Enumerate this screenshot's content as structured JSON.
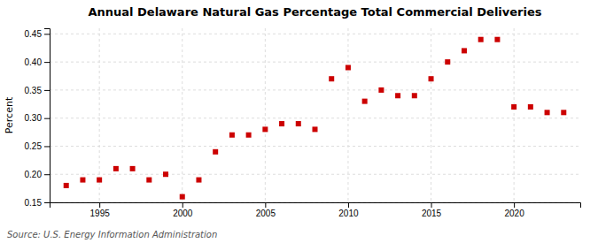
{
  "chart_data": {
    "type": "scatter",
    "title": "Annual Delaware Natural Gas Percentage Total Commercial Deliveries",
    "y_label": "Percent",
    "annotations": [
      "Source: U.S. Energy Information Administration"
    ],
    "x": [
      1993,
      1994,
      1995,
      1996,
      1997,
      1998,
      1999,
      2000,
      2001,
      2002,
      2003,
      2004,
      2005,
      2006,
      2007,
      2008,
      2009,
      2010,
      2011,
      2012,
      2013,
      2014,
      2015,
      2016,
      2017,
      2018,
      2019,
      2020,
      2021,
      2022,
      2023
    ],
    "values": [
      0.18,
      0.19,
      0.19,
      0.21,
      0.21,
      0.19,
      0.2,
      0.16,
      0.19,
      0.24,
      0.27,
      0.27,
      0.28,
      0.29,
      0.29,
      0.28,
      0.37,
      0.39,
      0.33,
      0.35,
      0.34,
      0.34,
      0.37,
      0.4,
      0.42,
      0.44,
      0.44,
      0.32,
      0.32,
      0.31,
      0.31
    ],
    "color": "#cc0000",
    "marker": "square",
    "xlim": [
      1992,
      2024
    ],
    "xticks": [
      1995,
      2000,
      2005,
      2010,
      2015,
      2020
    ],
    "ylim": [
      0.15,
      0.46
    ],
    "yticks": [
      0.15,
      {
        "value": 0.2,
        "label": "0.20"
      },
      0.25,
      {
        "value": 0.3,
        "label": "0.30"
      },
      0.35,
      {
        "value": 0.4,
        "label": "0.40"
      },
      0.45
    ],
    "grid": true
  }
}
